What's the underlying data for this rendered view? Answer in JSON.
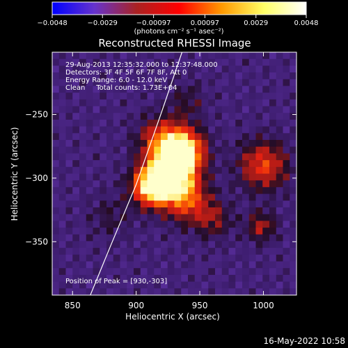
{
  "chart_data": {
    "type": "heatmap",
    "title": "Reconstructed RHESSI Image",
    "xlabel": "Heliocentric X (arcsec)",
    "ylabel": "Heliocentric Y (arcsec)",
    "xlim": [
      834,
      1026
    ],
    "ylim": [
      -392,
      -201
    ],
    "x_ticks": [
      850,
      900,
      950,
      1000
    ],
    "x_tick_labels": [
      "850",
      "900",
      "950",
      "1000"
    ],
    "y_ticks": [
      -250,
      -300,
      -350
    ],
    "y_tick_labels": [
      "−250",
      "−300",
      "−350"
    ],
    "colorbar": {
      "range": [
        -0.0048,
        0.0048
      ],
      "ticks": [
        -0.0048,
        -0.0029,
        -0.00097,
        0.00097,
        0.0029,
        0.0048
      ],
      "tick_labels": [
        "−0.0048",
        "−0.0029",
        "−0.00097",
        "0.00097",
        "0.0029",
        "0.0048"
      ],
      "unit_label": "(photons cm⁻² s⁻¹ asec⁻²)",
      "colors": [
        "#0000ff",
        "#6633cc",
        "#aa2222",
        "#ff0000",
        "#ff9900",
        "#ffff66",
        "#ffffff"
      ]
    },
    "annotations": [
      "29-Aug-2013 12:35:32.000 to 12:37:48.000",
      "Detectors: 3F 4F 5F 6F 7F 8F, Att 0",
      "Energy Range: 6.0 - 12.0 keV",
      "Clean     Total counts: 1.73E+04"
    ],
    "peak_label": "Position of Peak = [930,-303]",
    "peak": [
      930,
      -303
    ],
    "limb_curve": [
      [
        864,
        -392
      ],
      [
        880,
        -353
      ],
      [
        900,
        -305
      ],
      [
        920,
        -248
      ],
      [
        936,
        -201
      ]
    ],
    "sources": [
      {
        "x": 927,
        "y": -298,
        "intensity": 1.0,
        "sigma": 13
      },
      {
        "x": 937,
        "y": -278,
        "intensity": 0.85,
        "sigma": 11
      },
      {
        "x": 912,
        "y": -307,
        "intensity": 0.75,
        "sigma": 10
      },
      {
        "x": 920,
        "y": -270,
        "intensity": 0.45,
        "sigma": 12
      },
      {
        "x": 940,
        "y": -318,
        "intensity": 0.4,
        "sigma": 12
      },
      {
        "x": 1000,
        "y": -290,
        "intensity": 0.45,
        "sigma": 13
      },
      {
        "x": 960,
        "y": -332,
        "intensity": 0.25,
        "sigma": 10
      },
      {
        "x": 998,
        "y": -338,
        "intensity": 0.3,
        "sigma": 8
      },
      {
        "x": 880,
        "y": -330,
        "intensity": 0.12,
        "sigma": 12
      },
      {
        "x": 940,
        "y": -240,
        "intensity": 0.15,
        "sigma": 10
      }
    ]
  },
  "footer": {
    "timestamp": "16-May-2022 10:58"
  }
}
